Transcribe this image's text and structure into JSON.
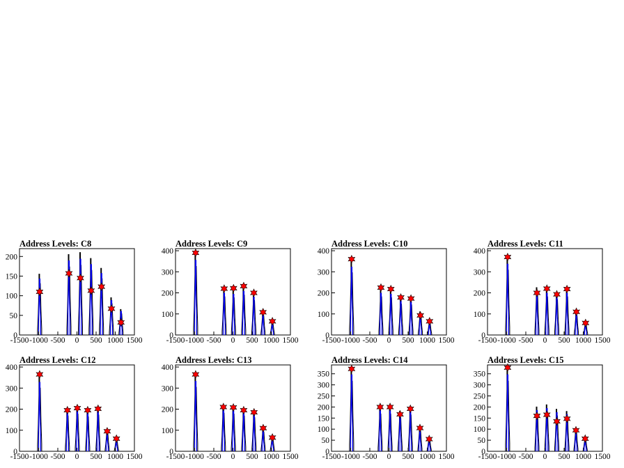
{
  "chart_data": [
    {
      "type": "histogram",
      "title": "Address Levels: C8",
      "xlim": [
        -1500,
        1500
      ],
      "ylim": [
        0,
        220
      ],
      "yticks": [
        0,
        50,
        100,
        150,
        200
      ],
      "xticks": [
        -1500,
        -1000,
        -500,
        0,
        500,
        1000,
        1500
      ],
      "peaks": [
        {
          "x": -975,
          "y": 155
        },
        {
          "x": -210,
          "y": 205
        },
        {
          "x": 90,
          "y": 210
        },
        {
          "x": 370,
          "y": 195
        },
        {
          "x": 640,
          "y": 170
        },
        {
          "x": 900,
          "y": 95
        },
        {
          "x": 1150,
          "y": 65
        }
      ],
      "markers": [
        {
          "x": -975,
          "y": 110
        },
        {
          "x": -210,
          "y": 157
        },
        {
          "x": 90,
          "y": 145
        },
        {
          "x": 370,
          "y": 113
        },
        {
          "x": 640,
          "y": 123
        },
        {
          "x": 900,
          "y": 67
        },
        {
          "x": 1150,
          "y": 32
        }
      ]
    },
    {
      "type": "histogram",
      "title": "Address Levels: C9",
      "xlim": [
        -1500,
        1500
      ],
      "ylim": [
        0,
        410
      ],
      "yticks": [
        0,
        100,
        200,
        300,
        400
      ],
      "xticks": [
        -1500,
        -1000,
        -500,
        0,
        500,
        1000,
        1500
      ],
      "peaks": [
        {
          "x": -975,
          "y": 385
        },
        {
          "x": -230,
          "y": 215
        },
        {
          "x": 15,
          "y": 210
        },
        {
          "x": 280,
          "y": 225
        },
        {
          "x": 545,
          "y": 195
        },
        {
          "x": 785,
          "y": 110
        },
        {
          "x": 1030,
          "y": 65
        }
      ],
      "markers": [
        {
          "x": -975,
          "y": 390
        },
        {
          "x": -230,
          "y": 220
        },
        {
          "x": 15,
          "y": 222
        },
        {
          "x": 280,
          "y": 232
        },
        {
          "x": 545,
          "y": 200
        },
        {
          "x": 785,
          "y": 108
        },
        {
          "x": 1030,
          "y": 65
        }
      ]
    },
    {
      "type": "histogram",
      "title": "Address Levels: C10",
      "xlim": [
        -1500,
        1500
      ],
      "ylim": [
        0,
        410
      ],
      "yticks": [
        0,
        100,
        200,
        300,
        400
      ],
      "xticks": [
        -1500,
        -1000,
        -500,
        0,
        500,
        1000,
        1500
      ],
      "peaks": [
        {
          "x": -975,
          "y": 350
        },
        {
          "x": -210,
          "y": 215
        },
        {
          "x": 50,
          "y": 210
        },
        {
          "x": 310,
          "y": 175
        },
        {
          "x": 575,
          "y": 170
        },
        {
          "x": 820,
          "y": 110
        },
        {
          "x": 1060,
          "y": 65
        }
      ],
      "markers": [
        {
          "x": -975,
          "y": 360
        },
        {
          "x": -210,
          "y": 225
        },
        {
          "x": 50,
          "y": 218
        },
        {
          "x": 310,
          "y": 178
        },
        {
          "x": 575,
          "y": 173
        },
        {
          "x": 820,
          "y": 93
        },
        {
          "x": 1060,
          "y": 65
        }
      ]
    },
    {
      "type": "histogram",
      "title": "Address Levels: C11",
      "xlim": [
        -1500,
        1500
      ],
      "ylim": [
        0,
        410
      ],
      "yticks": [
        0,
        100,
        200,
        300,
        400
      ],
      "xticks": [
        -1500,
        -1000,
        -500,
        0,
        500,
        1000,
        1500
      ],
      "peaks": [
        {
          "x": -975,
          "y": 365
        },
        {
          "x": -210,
          "y": 225
        },
        {
          "x": 50,
          "y": 215
        },
        {
          "x": 310,
          "y": 200
        },
        {
          "x": 575,
          "y": 215
        },
        {
          "x": 820,
          "y": 110
        },
        {
          "x": 1060,
          "y": 60
        }
      ],
      "markers": [
        {
          "x": -975,
          "y": 370
        },
        {
          "x": -210,
          "y": 200
        },
        {
          "x": 50,
          "y": 220
        },
        {
          "x": 310,
          "y": 193
        },
        {
          "x": 575,
          "y": 218
        },
        {
          "x": 820,
          "y": 110
        },
        {
          "x": 1060,
          "y": 57
        }
      ]
    },
    {
      "type": "histogram",
      "title": "Address Levels: C12",
      "xlim": [
        -1500,
        1500
      ],
      "ylim": [
        0,
        410
      ],
      "yticks": [
        0,
        100,
        200,
        300,
        400
      ],
      "xticks": [
        -1500,
        -1000,
        -500,
        0,
        500,
        1000,
        1500
      ],
      "peaks": [
        {
          "x": -975,
          "y": 355
        },
        {
          "x": -250,
          "y": 200
        },
        {
          "x": 10,
          "y": 210
        },
        {
          "x": 280,
          "y": 195
        },
        {
          "x": 550,
          "y": 205
        },
        {
          "x": 790,
          "y": 100
        },
        {
          "x": 1030,
          "y": 60
        }
      ],
      "markers": [
        {
          "x": -975,
          "y": 365
        },
        {
          "x": -250,
          "y": 195
        },
        {
          "x": 10,
          "y": 205
        },
        {
          "x": 280,
          "y": 195
        },
        {
          "x": 550,
          "y": 202
        },
        {
          "x": 790,
          "y": 95
        },
        {
          "x": 1030,
          "y": 60
        }
      ]
    },
    {
      "type": "histogram",
      "title": "Address Levels: C13",
      "xlim": [
        -1500,
        1500
      ],
      "ylim": [
        0,
        410
      ],
      "yticks": [
        0,
        100,
        200,
        300,
        400
      ],
      "xticks": [
        -1500,
        -1000,
        -500,
        0,
        500,
        1000,
        1500
      ],
      "peaks": [
        {
          "x": -975,
          "y": 360
        },
        {
          "x": -250,
          "y": 215
        },
        {
          "x": 10,
          "y": 210
        },
        {
          "x": 280,
          "y": 200
        },
        {
          "x": 550,
          "y": 190
        },
        {
          "x": 790,
          "y": 110
        },
        {
          "x": 1030,
          "y": 70
        }
      ],
      "markers": [
        {
          "x": -975,
          "y": 365
        },
        {
          "x": -250,
          "y": 210
        },
        {
          "x": 10,
          "y": 208
        },
        {
          "x": 280,
          "y": 195
        },
        {
          "x": 550,
          "y": 185
        },
        {
          "x": 790,
          "y": 110
        },
        {
          "x": 1030,
          "y": 65
        }
      ]
    },
    {
      "type": "histogram",
      "title": "Address Levels: C14",
      "xlim": [
        -1500,
        1500
      ],
      "ylim": [
        0,
        390
      ],
      "yticks": [
        0,
        50,
        100,
        150,
        200,
        250,
        300,
        350
      ],
      "xticks": [
        -1500,
        -1000,
        -500,
        0,
        500,
        1000,
        1500
      ],
      "peaks": [
        {
          "x": -975,
          "y": 375
        },
        {
          "x": -230,
          "y": 200
        },
        {
          "x": 30,
          "y": 200
        },
        {
          "x": 290,
          "y": 180
        },
        {
          "x": 560,
          "y": 195
        },
        {
          "x": 810,
          "y": 110
        },
        {
          "x": 1050,
          "y": 60
        }
      ],
      "markers": [
        {
          "x": -975,
          "y": 372
        },
        {
          "x": -230,
          "y": 200
        },
        {
          "x": 30,
          "y": 200
        },
        {
          "x": 290,
          "y": 167
        },
        {
          "x": 560,
          "y": 192
        },
        {
          "x": 810,
          "y": 105
        },
        {
          "x": 1050,
          "y": 55
        }
      ]
    },
    {
      "type": "histogram",
      "title": "Address Levels: C15",
      "xlim": [
        -1500,
        1500
      ],
      "ylim": [
        0,
        390
      ],
      "yticks": [
        0,
        50,
        100,
        150,
        200,
        250,
        300,
        350
      ],
      "xticks": [
        -1500,
        -1000,
        -500,
        0,
        500,
        1000,
        1500
      ],
      "peaks": [
        {
          "x": -975,
          "y": 375
        },
        {
          "x": -210,
          "y": 200
        },
        {
          "x": 50,
          "y": 210
        },
        {
          "x": 310,
          "y": 190
        },
        {
          "x": 575,
          "y": 180
        },
        {
          "x": 810,
          "y": 100
        },
        {
          "x": 1050,
          "y": 60
        }
      ],
      "markers": [
        {
          "x": -975,
          "y": 378
        },
        {
          "x": -210,
          "y": 160
        },
        {
          "x": 50,
          "y": 165
        },
        {
          "x": 310,
          "y": 135
        },
        {
          "x": 575,
          "y": 147
        },
        {
          "x": 810,
          "y": 95
        },
        {
          "x": 1050,
          "y": 57
        }
      ]
    }
  ]
}
